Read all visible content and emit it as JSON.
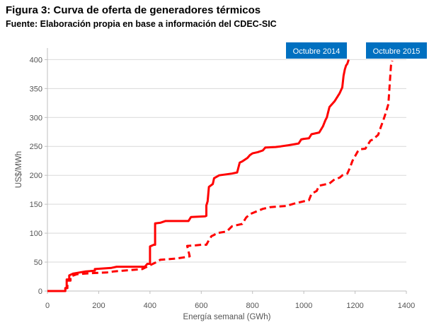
{
  "figure": {
    "title": "Figura 3: Curva de oferta de generadores térmicos",
    "source": "Fuente:  Elaboración propia en base a información del CDEC-SIC"
  },
  "chart_data": {
    "type": "line",
    "title": "Figura 3: Curva de oferta de generadores térmicos",
    "subtitle": "Fuente:  Elaboración propia en base a información del CDEC-SIC",
    "xlabel": "Energía semanal (GWh)",
    "ylabel": "US$/MWh",
    "xlim": [
      0,
      1400
    ],
    "ylim": [
      0,
      420
    ],
    "xticks": [
      0,
      200,
      400,
      600,
      800,
      1000,
      1200,
      1400
    ],
    "yticks": [
      0,
      50,
      100,
      150,
      200,
      250,
      300,
      350,
      400
    ],
    "grid": true,
    "legend": "top-right",
    "colors": {
      "series": "#ff0000",
      "label_box": "#0070c0",
      "label_text": "#ffffff",
      "grid": "#d9d9d9"
    },
    "series": [
      {
        "name": "Octubre 2014",
        "style": "solid",
        "points": [
          [
            0,
            0
          ],
          [
            70,
            0
          ],
          [
            70,
            5
          ],
          [
            75,
            5
          ],
          [
            75,
            20
          ],
          [
            85,
            20
          ],
          [
            85,
            27
          ],
          [
            100,
            30
          ],
          [
            150,
            34
          ],
          [
            185,
            35
          ],
          [
            185,
            38
          ],
          [
            250,
            40
          ],
          [
            270,
            42
          ],
          [
            380,
            42
          ],
          [
            390,
            47
          ],
          [
            400,
            47
          ],
          [
            400,
            77
          ],
          [
            415,
            80
          ],
          [
            420,
            80
          ],
          [
            420,
            117
          ],
          [
            440,
            118
          ],
          [
            460,
            121
          ],
          [
            550,
            121
          ],
          [
            560,
            128
          ],
          [
            615,
            129
          ],
          [
            620,
            130
          ],
          [
            620,
            148
          ],
          [
            625,
            155
          ],
          [
            630,
            180
          ],
          [
            645,
            185
          ],
          [
            650,
            195
          ],
          [
            670,
            200
          ],
          [
            720,
            203
          ],
          [
            740,
            205
          ],
          [
            750,
            222
          ],
          [
            760,
            224
          ],
          [
            780,
            230
          ],
          [
            790,
            235
          ],
          [
            800,
            238
          ],
          [
            820,
            240
          ],
          [
            840,
            243
          ],
          [
            850,
            248
          ],
          [
            890,
            249
          ],
          [
            910,
            250
          ],
          [
            940,
            252
          ],
          [
            980,
            255
          ],
          [
            990,
            262
          ],
          [
            1000,
            263
          ],
          [
            1020,
            264
          ],
          [
            1030,
            271
          ],
          [
            1060,
            274
          ],
          [
            1075,
            285
          ],
          [
            1085,
            296
          ],
          [
            1090,
            300
          ],
          [
            1095,
            309
          ],
          [
            1100,
            318
          ],
          [
            1120,
            328
          ],
          [
            1140,
            342
          ],
          [
            1150,
            352
          ],
          [
            1155,
            372
          ],
          [
            1160,
            383
          ],
          [
            1165,
            390
          ],
          [
            1170,
            393
          ],
          [
            1175,
            400
          ]
        ]
      },
      {
        "name": "Octubre 2015",
        "style": "dashed",
        "points": [
          [
            0,
            0
          ],
          [
            70,
            0
          ],
          [
            70,
            5
          ],
          [
            78,
            5
          ],
          [
            78,
            18
          ],
          [
            90,
            18
          ],
          [
            90,
            25
          ],
          [
            115,
            29
          ],
          [
            175,
            31
          ],
          [
            230,
            32
          ],
          [
            260,
            34
          ],
          [
            320,
            36
          ],
          [
            370,
            38
          ],
          [
            430,
            51
          ],
          [
            440,
            54
          ],
          [
            500,
            56
          ],
          [
            530,
            58
          ],
          [
            555,
            60
          ],
          [
            545,
            78
          ],
          [
            580,
            79
          ],
          [
            600,
            80
          ],
          [
            620,
            80
          ],
          [
            630,
            88
          ],
          [
            640,
            95
          ],
          [
            650,
            97
          ],
          [
            660,
            100
          ],
          [
            700,
            103
          ],
          [
            720,
            112
          ],
          [
            760,
            116
          ],
          [
            775,
            127
          ],
          [
            790,
            133
          ],
          [
            840,
            142
          ],
          [
            870,
            145
          ],
          [
            900,
            146
          ],
          [
            930,
            147
          ],
          [
            970,
            152
          ],
          [
            1000,
            155
          ],
          [
            1020,
            157
          ],
          [
            1030,
            168
          ],
          [
            1050,
            173
          ],
          [
            1060,
            182
          ],
          [
            1080,
            184
          ],
          [
            1100,
            186
          ],
          [
            1120,
            193
          ],
          [
            1140,
            196
          ],
          [
            1150,
            200
          ],
          [
            1170,
            203
          ],
          [
            1180,
            213
          ],
          [
            1190,
            225
          ],
          [
            1210,
            241
          ],
          [
            1220,
            245
          ],
          [
            1240,
            246
          ],
          [
            1260,
            260
          ],
          [
            1270,
            262
          ],
          [
            1290,
            270
          ],
          [
            1300,
            283
          ],
          [
            1310,
            295
          ],
          [
            1320,
            308
          ],
          [
            1330,
            323
          ],
          [
            1340,
            390
          ],
          [
            1345,
            398
          ]
        ]
      }
    ]
  }
}
